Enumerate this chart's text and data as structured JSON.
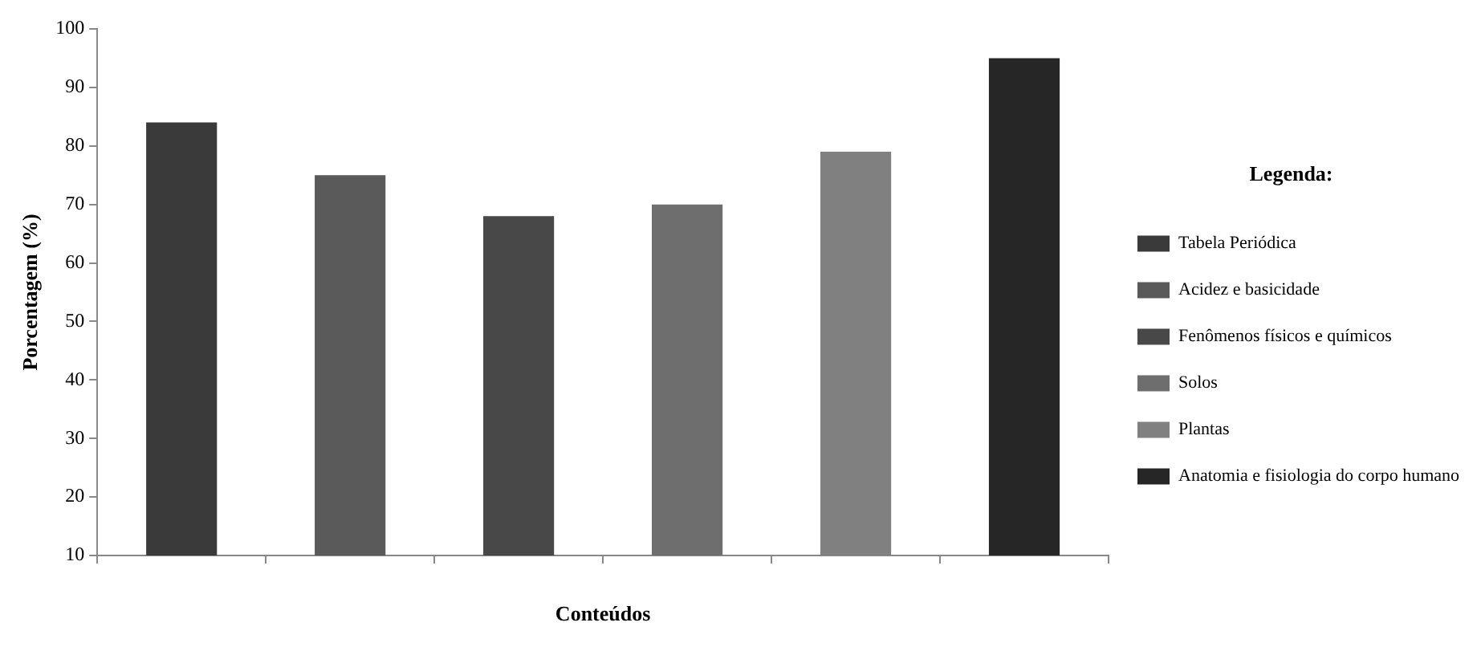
{
  "chart_data": {
    "type": "bar",
    "xlabel": "Conteúdos",
    "ylabel": "Porcentagem (%)",
    "legend_title": "Legenda:",
    "categories": [
      null,
      null,
      null,
      null,
      null,
      null
    ],
    "series": [
      {
        "name": "Tabela Periódica",
        "color": "#3a3a3a",
        "values": [
          84,
          null,
          null,
          null,
          null,
          null
        ]
      },
      {
        "name": "Acidez e basicidade",
        "color": "#5a5a5a",
        "values": [
          null,
          75,
          null,
          null,
          null,
          null
        ]
      },
      {
        "name": "Fenômenos físicos e químicos",
        "color": "#484848",
        "values": [
          null,
          null,
          68,
          null,
          null,
          null
        ]
      },
      {
        "name": "Solos",
        "color": "#6e6e6e",
        "values": [
          null,
          null,
          null,
          70,
          null,
          null
        ]
      },
      {
        "name": "Plantas",
        "color": "#808080",
        "values": [
          null,
          null,
          null,
          null,
          79,
          null
        ]
      },
      {
        "name": "Anatomia e fisiologia do corpo humano",
        "color": "#262626",
        "values": [
          null,
          null,
          null,
          null,
          null,
          95
        ]
      }
    ],
    "ylim": [
      10,
      100
    ],
    "yticks": [
      10,
      20,
      30,
      40,
      50,
      60,
      70,
      80,
      90,
      100
    ],
    "grid": false,
    "legend": "right"
  }
}
